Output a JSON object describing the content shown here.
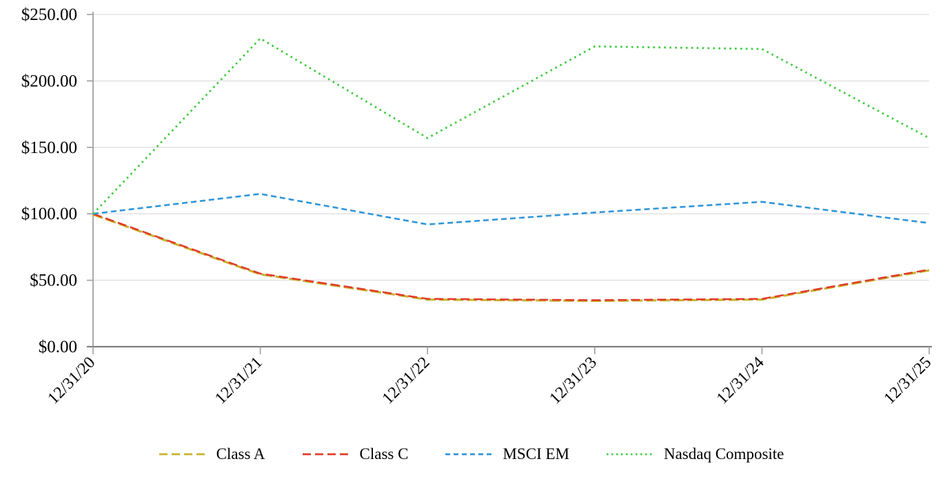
{
  "chart_data": {
    "type": "line",
    "title": "",
    "xlabel": "",
    "ylabel": "",
    "x_tick_labels": [
      "12/31/20",
      "12/31/21",
      "12/31/22",
      "12/31/23",
      "12/31/24",
      "12/31/25"
    ],
    "y_tick_labels": [
      "$0.00",
      "$50.00",
      "$100.00",
      "$150.00",
      "$200.00",
      "$250.00"
    ],
    "y_tick_values": [
      0,
      50,
      100,
      150,
      200,
      250
    ],
    "ylim": [
      0,
      250
    ],
    "grid": "horizontal-only",
    "legend_position": "bottom-center",
    "series": [
      {
        "name": "Class A",
        "color": "#C8B22C",
        "dash": "long",
        "values": [
          100,
          55,
          36,
          35,
          36,
          58
        ]
      },
      {
        "name": "Class C",
        "color": "#E13B2A",
        "dash": "long",
        "values": [
          100,
          55,
          36,
          35,
          36,
          58
        ]
      },
      {
        "name": "MSCI EM",
        "color": "#2E95D9",
        "dash": "short",
        "values": [
          100,
          115,
          92,
          101,
          109,
          93
        ]
      },
      {
        "name": "Nasdaq Composite",
        "color": "#3FCC3F",
        "dash": "dot",
        "values": [
          100,
          232,
          157,
          226,
          224,
          157
        ]
      }
    ],
    "colors": {
      "gridline": "#E4E4E4",
      "y_axis": "#9C9C9C",
      "x_axis": "#7F7F7F",
      "tick": "#9C9C9C",
      "text": "#000000"
    }
  }
}
